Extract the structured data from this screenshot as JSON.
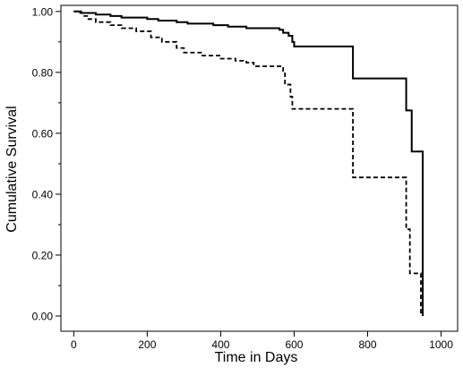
{
  "chart_data": {
    "type": "line",
    "subtype": "kaplan-meier step curve",
    "title": "",
    "xlabel": "Time in Days",
    "ylabel": "Cumulative Survival",
    "xlim": [
      -35,
      1045
    ],
    "ylim": [
      -0.05,
      1.02
    ],
    "x_ticks": [
      0,
      200,
      400,
      600,
      800,
      1000
    ],
    "x_tick_labels": [
      "0",
      "200",
      "400",
      "600",
      "800",
      "1000"
    ],
    "y_ticks": [
      0.0,
      0.2,
      0.4,
      0.6,
      0.8,
      1.0
    ],
    "y_tick_labels": [
      "0.00",
      "0.20",
      "0.40",
      "0.60",
      "0.80",
      "1.00"
    ],
    "y_minor_ticks": [
      0.1,
      0.3,
      0.5,
      0.7,
      0.9
    ],
    "grid": false,
    "legend": "none",
    "series": [
      {
        "style": "solid",
        "color": "#000000",
        "points": [
          [
            0,
            1.0
          ],
          [
            20,
            0.995
          ],
          [
            60,
            0.99
          ],
          [
            100,
            0.985
          ],
          [
            130,
            0.98
          ],
          [
            200,
            0.975
          ],
          [
            230,
            0.97
          ],
          [
            280,
            0.965
          ],
          [
            310,
            0.96
          ],
          [
            380,
            0.955
          ],
          [
            420,
            0.95
          ],
          [
            470,
            0.945
          ],
          [
            560,
            0.94
          ],
          [
            570,
            0.93
          ],
          [
            585,
            0.92
          ],
          [
            595,
            0.9
          ],
          [
            600,
            0.885
          ],
          [
            760,
            0.78
          ],
          [
            905,
            0.675
          ],
          [
            920,
            0.54
          ],
          [
            950,
            0.0
          ]
        ]
      },
      {
        "style": "dashed",
        "color": "#000000",
        "points": [
          [
            0,
            1.0
          ],
          [
            10,
            0.995
          ],
          [
            25,
            0.985
          ],
          [
            40,
            0.975
          ],
          [
            60,
            0.965
          ],
          [
            100,
            0.955
          ],
          [
            130,
            0.945
          ],
          [
            170,
            0.935
          ],
          [
            210,
            0.915
          ],
          [
            240,
            0.9
          ],
          [
            280,
            0.88
          ],
          [
            300,
            0.865
          ],
          [
            350,
            0.855
          ],
          [
            400,
            0.845
          ],
          [
            440,
            0.838
          ],
          [
            470,
            0.832
          ],
          [
            490,
            0.82
          ],
          [
            570,
            0.8
          ],
          [
            575,
            0.76
          ],
          [
            590,
            0.72
          ],
          [
            595,
            0.68
          ],
          [
            760,
            0.455
          ],
          [
            905,
            0.285
          ],
          [
            915,
            0.14
          ],
          [
            945,
            0.0
          ]
        ]
      }
    ]
  }
}
